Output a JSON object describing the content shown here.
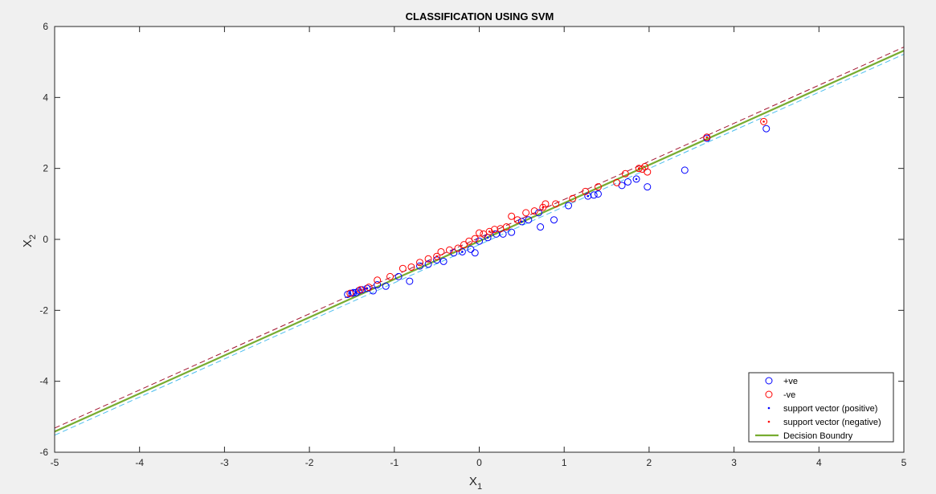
{
  "chart_data": {
    "type": "scatter",
    "title": "CLASSIFICATION USING SVM",
    "xlabel": {
      "base": "X",
      "sub": "1"
    },
    "ylabel": {
      "base": "X",
      "sub": "2"
    },
    "xlim": [
      -5,
      5
    ],
    "ylim": [
      -6,
      6
    ],
    "xticks": [
      -5,
      -4,
      -3,
      -2,
      -1,
      0,
      1,
      2,
      3,
      4,
      5
    ],
    "yticks": [
      -6,
      -4,
      -2,
      0,
      2,
      4,
      6
    ],
    "grid": false,
    "legend_position": "bottom-right",
    "legend": [
      {
        "label": "+ve",
        "marker": "circle",
        "color": "#0000ff"
      },
      {
        "label": "-ve",
        "marker": "circle",
        "color": "#ff0000"
      },
      {
        "label": "support vector (positive)",
        "marker": "dot",
        "color": "#0000ff"
      },
      {
        "label": "support vector (negative)",
        "marker": "dot",
        "color": "#ff0000"
      },
      {
        "label": "Decision Boundry",
        "marker": "line",
        "color": "#77ac30"
      }
    ],
    "lines": [
      {
        "kind": "margin-negative",
        "color": "#a2142f",
        "dash": true,
        "x": [
          -5,
          5
        ],
        "y": [
          -5.32,
          5.42
        ]
      },
      {
        "kind": "margin-positive",
        "color": "#4dbeee",
        "dash": true,
        "x": [
          -5,
          5
        ],
        "y": [
          -5.52,
          5.22
        ]
      },
      {
        "kind": "decision-boundary",
        "color": "#77ac30",
        "dash": false,
        "x": [
          -5,
          5
        ],
        "y": [
          -5.42,
          5.32
        ]
      }
    ],
    "series": [
      {
        "class": "positive",
        "color": "#0000ff",
        "points": [
          [
            -1.55,
            -1.55
          ],
          [
            -1.5,
            -1.52
          ],
          [
            -1.48,
            -1.5
          ],
          [
            -1.45,
            -1.5
          ],
          [
            -1.42,
            -1.45
          ],
          [
            -1.38,
            -1.42
          ],
          [
            -1.32,
            -1.38
          ],
          [
            -1.25,
            -1.45
          ],
          [
            -1.2,
            -1.28
          ],
          [
            -1.1,
            -1.32
          ],
          [
            -0.95,
            -1.05
          ],
          [
            -0.82,
            -1.18
          ],
          [
            -0.7,
            -0.75
          ],
          [
            -0.6,
            -0.7
          ],
          [
            -0.5,
            -0.58
          ],
          [
            -0.42,
            -0.62
          ],
          [
            -0.3,
            -0.38
          ],
          [
            -0.2,
            -0.35
          ],
          [
            -0.1,
            -0.28
          ],
          [
            -0.05,
            -0.38
          ],
          [
            0.0,
            -0.05
          ],
          [
            0.1,
            0.05
          ],
          [
            0.2,
            0.15
          ],
          [
            0.28,
            0.15
          ],
          [
            0.38,
            0.2
          ],
          [
            0.5,
            0.5
          ],
          [
            0.58,
            0.55
          ],
          [
            0.7,
            0.75
          ],
          [
            0.72,
            0.35
          ],
          [
            0.88,
            0.55
          ],
          [
            1.05,
            0.95
          ],
          [
            1.28,
            1.22
          ],
          [
            1.35,
            1.25
          ],
          [
            1.4,
            1.28
          ],
          [
            1.68,
            1.52
          ],
          [
            1.75,
            1.62
          ],
          [
            1.85,
            1.7
          ],
          [
            1.98,
            1.48
          ],
          [
            2.42,
            1.95
          ],
          [
            2.68,
            2.85
          ],
          [
            3.38,
            3.12
          ]
        ]
      },
      {
        "class": "negative",
        "color": "#ff0000",
        "points": [
          [
            -1.52,
            -1.52
          ],
          [
            -1.4,
            -1.42
          ],
          [
            -1.3,
            -1.35
          ],
          [
            -1.2,
            -1.15
          ],
          [
            -1.05,
            -1.05
          ],
          [
            -0.9,
            -0.82
          ],
          [
            -0.8,
            -0.78
          ],
          [
            -0.7,
            -0.65
          ],
          [
            -0.6,
            -0.55
          ],
          [
            -0.5,
            -0.48
          ],
          [
            -0.45,
            -0.35
          ],
          [
            -0.35,
            -0.3
          ],
          [
            -0.25,
            -0.25
          ],
          [
            -0.18,
            -0.15
          ],
          [
            -0.12,
            -0.05
          ],
          [
            -0.05,
            0.02
          ],
          [
            0.0,
            0.18
          ],
          [
            0.05,
            0.15
          ],
          [
            0.12,
            0.22
          ],
          [
            0.18,
            0.28
          ],
          [
            0.25,
            0.3
          ],
          [
            0.32,
            0.35
          ],
          [
            0.38,
            0.65
          ],
          [
            0.45,
            0.55
          ],
          [
            0.55,
            0.75
          ],
          [
            0.65,
            0.8
          ],
          [
            0.75,
            0.9
          ],
          [
            0.78,
            1.0
          ],
          [
            0.9,
            1.0
          ],
          [
            1.1,
            1.15
          ],
          [
            1.25,
            1.35
          ],
          [
            1.4,
            1.48
          ],
          [
            1.62,
            1.6
          ],
          [
            1.72,
            1.85
          ],
          [
            1.88,
            2.0
          ],
          [
            1.92,
            1.98
          ],
          [
            1.95,
            2.05
          ],
          [
            1.98,
            1.9
          ],
          [
            2.68,
            2.88
          ],
          [
            3.35,
            3.32
          ]
        ]
      },
      {
        "class": "support-positive",
        "color": "#0000ff",
        "points": [
          [
            -1.52,
            -1.52
          ],
          [
            -1.45,
            -1.5
          ],
          [
            -1.32,
            -1.38
          ],
          [
            -0.2,
            -0.35
          ],
          [
            0.1,
            0.05
          ],
          [
            0.5,
            0.5
          ],
          [
            1.28,
            1.22
          ],
          [
            1.85,
            1.7
          ]
        ]
      },
      {
        "class": "support-negative",
        "color": "#ff0000",
        "points": [
          [
            -1.4,
            -1.42
          ],
          [
            -0.5,
            -0.48
          ],
          [
            0.12,
            0.22
          ],
          [
            0.75,
            0.9
          ],
          [
            1.88,
            2.0
          ],
          [
            2.68,
            2.88
          ],
          [
            3.35,
            3.32
          ]
        ]
      }
    ]
  }
}
